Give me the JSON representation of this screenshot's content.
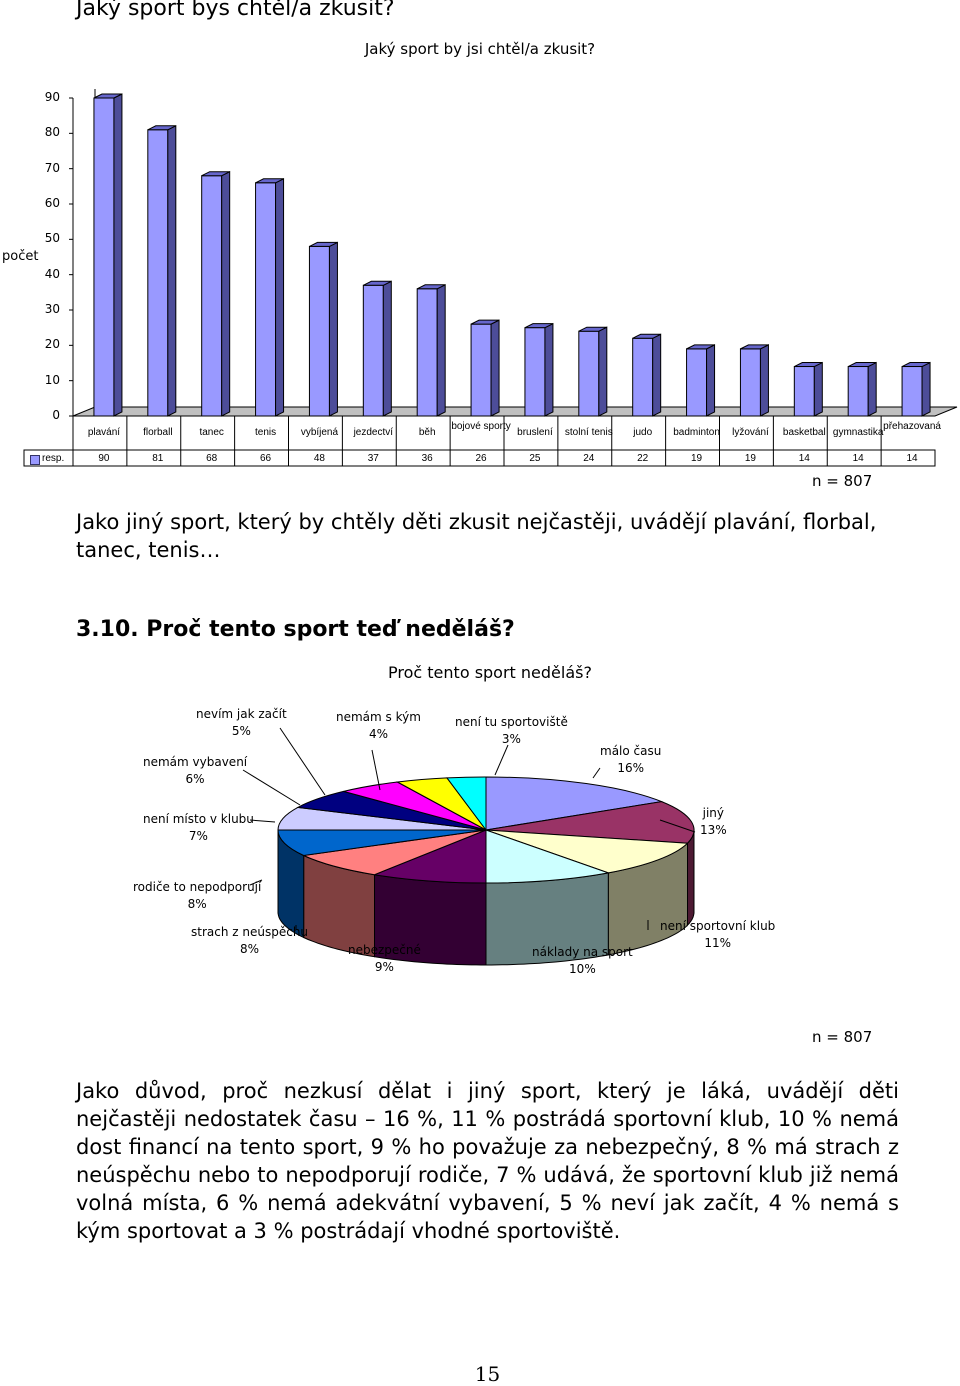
{
  "heading_top": "Jaký sport bys chtěl/a zkusit?",
  "chart_data": [
    {
      "type": "bar",
      "title": "Jaký sport by jsi chtěl/a zkusit?",
      "ylabel": "počet",
      "xlabel": "",
      "ylim": [
        0,
        90
      ],
      "yticks": [
        0,
        10,
        20,
        30,
        40,
        50,
        60,
        70,
        80,
        90
      ],
      "categories": [
        "plavání",
        "florball",
        "tanec",
        "tenis",
        "vybíjená",
        "jezdectví",
        "běh",
        "bojové sporty",
        "bruslení",
        "stolní tenis",
        "judo",
        "badminton",
        "lyžování",
        "basketbal",
        "gymnastika",
        "přehazovaná"
      ],
      "series": [
        {
          "name": "resp.",
          "values": [
            90,
            81,
            68,
            66,
            48,
            37,
            36,
            26,
            25,
            24,
            22,
            19,
            19,
            14,
            14,
            14
          ]
        }
      ],
      "bar_color": "#9999ff",
      "legend": "bottom-left (data table)",
      "three_d": true,
      "n_label": "n = 807"
    },
    {
      "type": "pie",
      "title": "Proč tento sport neděláš?",
      "three_d": true,
      "slices": [
        {
          "label": "málo času",
          "value": 16,
          "value_label": "16%",
          "color": "#9999ff"
        },
        {
          "label": "jiný",
          "value": 13,
          "value_label": "13%",
          "color": "#993366"
        },
        {
          "label": "není sportovní klub",
          "value": 11,
          "value_label": "11%",
          "color": "#ffffcc"
        },
        {
          "label": "náklady na sport",
          "value": 10,
          "value_label": "10%",
          "color": "#ccffff"
        },
        {
          "label": "nebezpečné",
          "value": 9,
          "value_label": "9%",
          "color": "#660066"
        },
        {
          "label": "strach z neúspěchu",
          "value": 8,
          "value_label": "8%",
          "color": "#ff8080"
        },
        {
          "label": "rodiče to nepodporují",
          "value": 8,
          "value_label": "8%",
          "color": "#0066cc"
        },
        {
          "label": "není místo v klubu",
          "value": 7,
          "value_label": "7%",
          "color": "#ccccff"
        },
        {
          "label": "nemám vybavení",
          "value": 6,
          "value_label": "6%",
          "color": "#000080"
        },
        {
          "label": "nevím jak začít",
          "value": 5,
          "value_label": "5%",
          "color": "#ff00ff"
        },
        {
          "label": "nemám s kým",
          "value": 4,
          "value_label": "4%",
          "color": "#ffff00"
        },
        {
          "label": "není tu sportoviště",
          "value": 3,
          "value_label": "3%",
          "color": "#00ffff"
        }
      ],
      "n_label": "n = 807"
    }
  ],
  "paragraph1": "Jako jiný sport, který by chtěly děti zkusit nejčastěji, uvádějí plavání, florbal, tanec, tenis…",
  "section_heading": "3.10. Proč tento sport teď neděláš?",
  "paragraph2": "Jako důvod, proč nezkusí dělat i jiný sport, který je láká, uvádějí děti nejčastěji nedostatek času – 16 %, 11 % postrádá sportovní klub, 10 % nemá dost financí na tento sport, 9 % ho považuje za nebezpečný, 8 % má strach z neúspěchu nebo to nepodporují rodiče, 7 % udává, že sportovní klub již nemá volná místa, 6 % nemá adekvátní vybavení, 5 % neví jak začít, 4 % nemá s kým sportovat a 3 % postrádají vhodné sportoviště.",
  "page_number": "15"
}
